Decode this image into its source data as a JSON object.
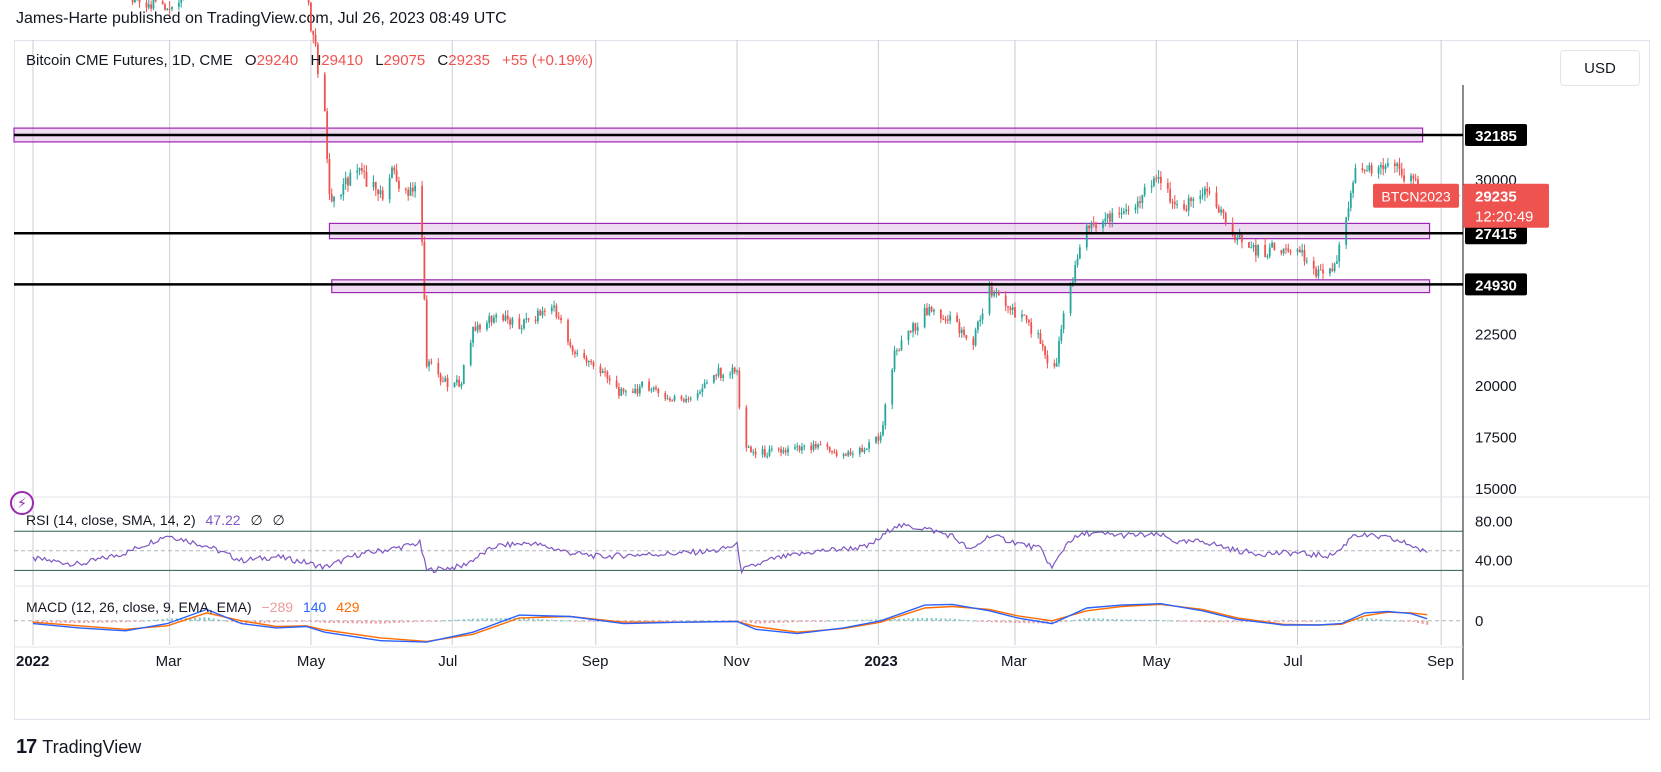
{
  "header": {
    "published": "James-Harte published on TradingView.com, Jul 26, 2023 08:49 UTC"
  },
  "legend": {
    "symbol": "Bitcoin CME Futures, 1D, CME",
    "o_label": "O",
    "o_value": "29240",
    "h_label": "H",
    "h_value": "29410",
    "l_label": "L",
    "l_value": "29075",
    "c_label": "C",
    "c_value": "29235",
    "change": "+55 (+0.19%)"
  },
  "currency": "USD",
  "rsi_legend": {
    "label": "RSI (14, close, SMA, 14, 2)",
    "value": "47.22",
    "extra1": "∅",
    "extra2": "∅"
  },
  "macd_legend": {
    "label": "MACD (12, 26, close, 9, EMA, EMA)",
    "hist": "−289",
    "macd": "140",
    "signal": "429"
  },
  "footer": {
    "brand": "TradingView",
    "logo": "17"
  },
  "colors": {
    "up": "#26a69a",
    "down": "#ef5350",
    "zone": "#9c27b0",
    "rsi": "#7e57c2",
    "macd": "#2962ff",
    "signal": "#ff6d00"
  },
  "chart_data": {
    "type": "candlestick",
    "symbol": "BTCN2023",
    "interval": "1D",
    "price_axis": {
      "ticks": [
        15000,
        17500,
        20000,
        22500,
        25000,
        27500,
        30000
      ],
      "ylim": [
        14600,
        36800
      ]
    },
    "time_axis": {
      "labels": [
        "2022",
        "Mar",
        "May",
        "Jul",
        "Sep",
        "Nov",
        "2023",
        "Mar",
        "May",
        "Jul",
        "Sep"
      ],
      "day_index": [
        0,
        59,
        120,
        181,
        243,
        304,
        365,
        424,
        485,
        546,
        608
      ],
      "days_total": 655
    },
    "last_price": {
      "label": "BTCN2023",
      "value": "29235",
      "countdown": "12:20:49"
    },
    "levels": [
      {
        "value": 32185,
        "label": "32185"
      },
      {
        "value": 27415,
        "label": "27415"
      },
      {
        "value": 24930,
        "label": "24930"
      }
    ],
    "zones": [
      {
        "low": 31850,
        "high": 32520,
        "start_day": 0,
        "end_day": 600
      },
      {
        "low": 27150,
        "high": 27890,
        "start_day": 128,
        "end_day": 603
      },
      {
        "low": 24530,
        "high": 25150,
        "start_day": 129,
        "end_day": 603
      }
    ],
    "path": [
      [
        0,
        47200
      ],
      [
        20,
        43000
      ],
      [
        40,
        39000
      ],
      [
        58,
        38500
      ],
      [
        75,
        40500
      ],
      [
        90,
        46500
      ],
      [
        105,
        41000
      ],
      [
        118,
        38800
      ],
      [
        126,
        33500
      ],
      [
        128,
        29000
      ],
      [
        140,
        30500
      ],
      [
        150,
        29200
      ],
      [
        155,
        30300
      ],
      [
        160,
        29400
      ],
      [
        167,
        29900
      ],
      [
        170,
        21200
      ],
      [
        175,
        20500
      ],
      [
        180,
        19900
      ],
      [
        185,
        20300
      ],
      [
        190,
        22800
      ],
      [
        200,
        23400
      ],
      [
        210,
        22900
      ],
      [
        225,
        23900
      ],
      [
        232,
        21800
      ],
      [
        245,
        20700
      ],
      [
        255,
        19500
      ],
      [
        265,
        20100
      ],
      [
        275,
        19300
      ],
      [
        285,
        19500
      ],
      [
        295,
        20600
      ],
      [
        304,
        20700
      ],
      [
        306,
        17000
      ],
      [
        312,
        16700
      ],
      [
        330,
        16900
      ],
      [
        340,
        17000
      ],
      [
        350,
        16600
      ],
      [
        360,
        17000
      ],
      [
        366,
        17600
      ],
      [
        372,
        21500
      ],
      [
        385,
        23600
      ],
      [
        397,
        23300
      ],
      [
        405,
        21900
      ],
      [
        413,
        24600
      ],
      [
        425,
        23500
      ],
      [
        435,
        22300
      ],
      [
        440,
        20100
      ],
      [
        447,
        24500
      ],
      [
        455,
        27800
      ],
      [
        465,
        28100
      ],
      [
        475,
        28400
      ],
      [
        480,
        29500
      ],
      [
        487,
        30000
      ],
      [
        495,
        28300
      ],
      [
        505,
        29500
      ],
      [
        520,
        27200
      ],
      [
        530,
        26500
      ],
      [
        545,
        26900
      ],
      [
        552,
        25700
      ],
      [
        560,
        25400
      ],
      [
        565,
        26900
      ],
      [
        570,
        30200
      ],
      [
        578,
        30600
      ],
      [
        585,
        30900
      ],
      [
        590,
        30300
      ],
      [
        595,
        29900
      ],
      [
        600,
        29500
      ],
      [
        602,
        29235
      ]
    ],
    "rsi": {
      "ticks": [
        40.0,
        80.0
      ],
      "bands": [
        30,
        70
      ],
      "mid": 50,
      "ylim": [
        15,
        102
      ],
      "value": 47.22,
      "path": [
        [
          0,
          42
        ],
        [
          20,
          36
        ],
        [
          40,
          48
        ],
        [
          58,
          66
        ],
        [
          75,
          55
        ],
        [
          90,
          40
        ],
        [
          105,
          44
        ],
        [
          118,
          38
        ],
        [
          126,
          33
        ],
        [
          140,
          46
        ],
        [
          155,
          52
        ],
        [
          167,
          58
        ],
        [
          170,
          30
        ],
        [
          185,
          34
        ],
        [
          200,
          55
        ],
        [
          215,
          58
        ],
        [
          232,
          48
        ],
        [
          245,
          44
        ],
        [
          260,
          46
        ],
        [
          275,
          47
        ],
        [
          295,
          50
        ],
        [
          304,
          56
        ],
        [
          306,
          30
        ],
        [
          320,
          42
        ],
        [
          340,
          50
        ],
        [
          360,
          54
        ],
        [
          366,
          63
        ],
        [
          372,
          76
        ],
        [
          385,
          73
        ],
        [
          397,
          65
        ],
        [
          405,
          50
        ],
        [
          413,
          66
        ],
        [
          425,
          58
        ],
        [
          435,
          52
        ],
        [
          440,
          32
        ],
        [
          447,
          60
        ],
        [
          455,
          68
        ],
        [
          470,
          66
        ],
        [
          487,
          66
        ],
        [
          495,
          58
        ],
        [
          505,
          60
        ],
        [
          520,
          50
        ],
        [
          530,
          47
        ],
        [
          545,
          48
        ],
        [
          552,
          46
        ],
        [
          560,
          45
        ],
        [
          565,
          52
        ],
        [
          570,
          67
        ],
        [
          585,
          63
        ],
        [
          595,
          56
        ],
        [
          602,
          47
        ]
      ]
    },
    "macd": {
      "ticks": [
        0
      ],
      "ylim": [
        -1700,
        2300
      ],
      "macd_line": [
        [
          0,
          -200
        ],
        [
          20,
          -500
        ],
        [
          40,
          -700
        ],
        [
          58,
          -200
        ],
        [
          75,
          800
        ],
        [
          90,
          -200
        ],
        [
          105,
          -500
        ],
        [
          118,
          -400
        ],
        [
          126,
          -800
        ],
        [
          150,
          -1400
        ],
        [
          170,
          -1500
        ],
        [
          190,
          -800
        ],
        [
          210,
          400
        ],
        [
          232,
          300
        ],
        [
          255,
          -200
        ],
        [
          280,
          -100
        ],
        [
          304,
          -50
        ],
        [
          312,
          -600
        ],
        [
          330,
          -900
        ],
        [
          350,
          -500
        ],
        [
          366,
          0
        ],
        [
          385,
          1100
        ],
        [
          397,
          1150
        ],
        [
          413,
          700
        ],
        [
          425,
          200
        ],
        [
          440,
          -200
        ],
        [
          455,
          900
        ],
        [
          470,
          1100
        ],
        [
          487,
          1200
        ],
        [
          505,
          700
        ],
        [
          520,
          100
        ],
        [
          540,
          -300
        ],
        [
          555,
          -300
        ],
        [
          565,
          -200
        ],
        [
          575,
          550
        ],
        [
          585,
          650
        ],
        [
          595,
          500
        ],
        [
          602,
          140
        ]
      ],
      "signal_line": [
        [
          0,
          -100
        ],
        [
          20,
          -350
        ],
        [
          40,
          -600
        ],
        [
          58,
          -350
        ],
        [
          75,
          550
        ],
        [
          90,
          0
        ],
        [
          105,
          -400
        ],
        [
          118,
          -350
        ],
        [
          126,
          -650
        ],
        [
          150,
          -1200
        ],
        [
          170,
          -1450
        ],
        [
          190,
          -950
        ],
        [
          210,
          200
        ],
        [
          232,
          300
        ],
        [
          255,
          -100
        ],
        [
          280,
          -100
        ],
        [
          304,
          -50
        ],
        [
          312,
          -400
        ],
        [
          330,
          -800
        ],
        [
          350,
          -550
        ],
        [
          366,
          -100
        ],
        [
          385,
          900
        ],
        [
          397,
          1000
        ],
        [
          413,
          800
        ],
        [
          425,
          350
        ],
        [
          440,
          0
        ],
        [
          455,
          700
        ],
        [
          470,
          1000
        ],
        [
          487,
          1150
        ],
        [
          505,
          800
        ],
        [
          520,
          200
        ],
        [
          540,
          -250
        ],
        [
          555,
          -300
        ],
        [
          565,
          -250
        ],
        [
          575,
          350
        ],
        [
          585,
          600
        ],
        [
          595,
          550
        ],
        [
          602,
          429
        ]
      ]
    }
  }
}
